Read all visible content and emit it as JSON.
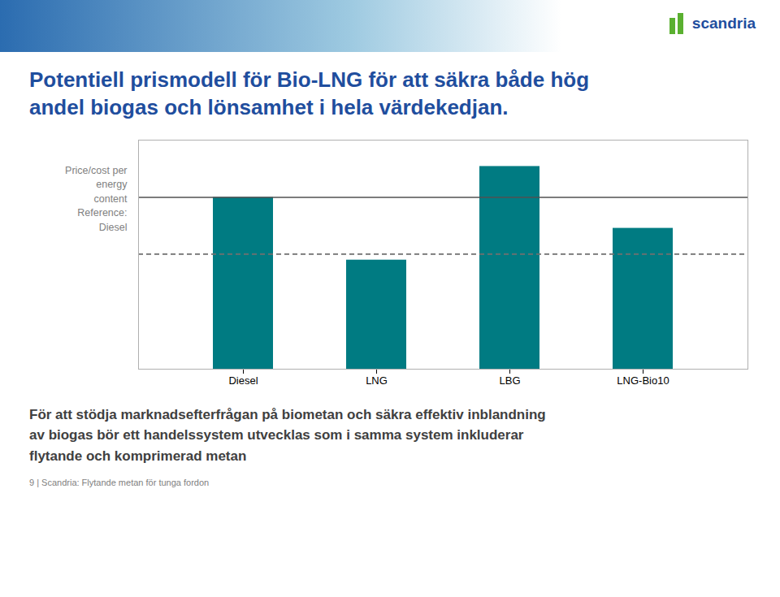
{
  "chart_data": {
    "type": "bar",
    "title": "Potentiell prismodell för Bio-LNG för att säkra både hög\nandel biogas och lönsamhet i hela värdekedjan.",
    "ylabel": "Price/cost per\nenergy\ncontent\nReference:\nDiesel",
    "categories": [
      "Diesel",
      "LNG",
      "LBG",
      "LNG-Bio10"
    ],
    "values": [
      1.0,
      0.635,
      1.18,
      0.82
    ],
    "color": "#007b82",
    "ylim": [
      0,
      1.3334
    ],
    "yticks": [],
    "tick_labels": "x",
    "grid": false,
    "reference_lines": [
      {
        "value": 1.0,
        "line_style": "solid",
        "color": "#505050"
      },
      {
        "value": 0.67,
        "line_style": "dashed",
        "color": "#707070"
      }
    ],
    "annotations": [
      "scandria",
      "För att stödja marknadsefterfrågan på biometan och säkra effektiv inblandning\nav biogas bör ett handelssystem utvecklas som i samma system inkluderar\nflytande och komprimerad metan",
      "9 | Scandria: Flytande metan för tunga fordon"
    ]
  }
}
